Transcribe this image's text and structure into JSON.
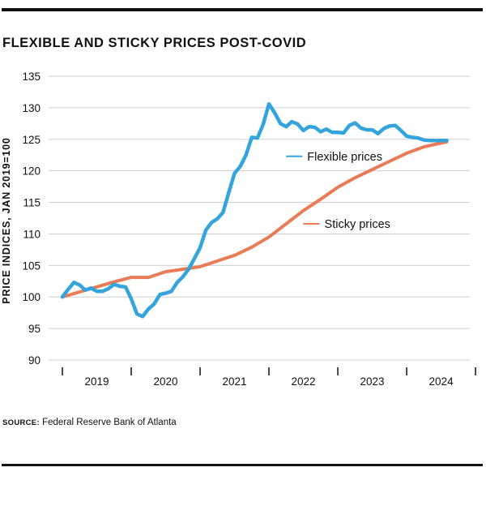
{
  "title": "FLEXIBLE AND STICKY PRICES POST-COVID",
  "source": {
    "label": "SOURCE:",
    "text": " Federal Reserve Bank of Atlanta"
  },
  "colors": {
    "flexible": "#33a5dc",
    "sticky": "#e97b57",
    "grid": "#cfcfcf",
    "text": "#111111"
  },
  "chart_data": {
    "type": "line",
    "title": "FLEXIBLE AND STICKY PRICES POST-COVID",
    "xlabel": "",
    "ylabel": "PRICE INDICES, JAN 2019=100",
    "ylim": [
      90,
      135
    ],
    "xlim": [
      2019.0,
      2024.9167
    ],
    "yticks": [
      90,
      95,
      100,
      105,
      110,
      115,
      120,
      125,
      130,
      135
    ],
    "xcategories": [
      "2019",
      "2020",
      "2021",
      "2022",
      "2023",
      "2024"
    ],
    "xtick_marks": [
      2019,
      2020,
      2021,
      2022,
      2023,
      2024,
      2025
    ],
    "grid": true,
    "legend": "inline labels next to lines",
    "series": [
      {
        "name": "Flexible prices",
        "key": "flexible",
        "label_anchor": [
          2022.25,
          122.3
        ],
        "x": [
          2019.0,
          2019.083,
          2019.167,
          2019.25,
          2019.333,
          2019.417,
          2019.5,
          2019.583,
          2019.667,
          2019.75,
          2019.833,
          2019.917,
          2020.0,
          2020.083,
          2020.167,
          2020.25,
          2020.333,
          2020.417,
          2020.5,
          2020.583,
          2020.667,
          2020.75,
          2020.833,
          2020.917,
          2021.0,
          2021.083,
          2021.167,
          2021.25,
          2021.333,
          2021.417,
          2021.5,
          2021.583,
          2021.667,
          2021.75,
          2021.833,
          2021.917,
          2022.0,
          2022.083,
          2022.167,
          2022.25,
          2022.333,
          2022.417,
          2022.5,
          2022.583,
          2022.667,
          2022.75,
          2022.833,
          2022.917,
          2023.0,
          2023.083,
          2023.167,
          2023.25,
          2023.333,
          2023.417,
          2023.5,
          2023.583,
          2023.667,
          2023.75,
          2023.833,
          2023.917,
          2024.0,
          2024.083,
          2024.167,
          2024.25,
          2024.333,
          2024.417,
          2024.5,
          2024.583
        ],
        "values": [
          100.0,
          101.2,
          102.3,
          101.9,
          101.1,
          101.4,
          100.9,
          100.9,
          101.3,
          102.0,
          101.7,
          101.6,
          99.7,
          97.3,
          96.9,
          98.1,
          98.9,
          100.4,
          100.6,
          100.9,
          102.3,
          103.2,
          104.4,
          106.1,
          107.8,
          110.6,
          111.8,
          112.4,
          113.4,
          116.6,
          119.6,
          120.7,
          122.5,
          125.3,
          125.2,
          127.4,
          130.6,
          129.2,
          127.5,
          127.0,
          127.8,
          127.4,
          126.4,
          127.0,
          126.9,
          126.2,
          126.6,
          126.1,
          126.1,
          126.0,
          127.2,
          127.6,
          126.8,
          126.5,
          126.5,
          125.9,
          126.7,
          127.1,
          127.2,
          126.4,
          125.5,
          125.3,
          125.2,
          124.9,
          124.8,
          124.8,
          124.8,
          124.8
        ]
      },
      {
        "name": "Sticky prices",
        "key": "sticky",
        "label_anchor": [
          2022.5,
          111.6
        ],
        "x": [
          2019.0,
          2019.25,
          2019.5,
          2019.75,
          2020.0,
          2020.25,
          2020.5,
          2020.75,
          2021.0,
          2021.25,
          2021.5,
          2021.75,
          2022.0,
          2022.25,
          2022.5,
          2022.75,
          2023.0,
          2023.25,
          2023.5,
          2023.75,
          2024.0,
          2024.25,
          2024.5,
          2024.583
        ],
        "values": [
          100.0,
          100.8,
          101.6,
          102.4,
          103.1,
          103.1,
          104.0,
          104.4,
          104.8,
          105.7,
          106.6,
          107.9,
          109.5,
          111.6,
          113.7,
          115.5,
          117.4,
          118.9,
          120.2,
          121.5,
          122.8,
          123.8,
          124.4,
          124.6
        ]
      }
    ]
  }
}
